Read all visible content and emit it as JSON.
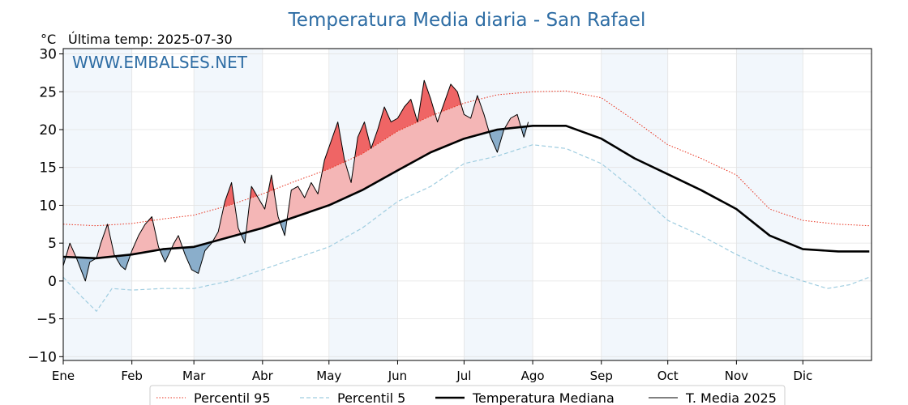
{
  "chart_data": {
    "type": "line",
    "title": "Temperatura Media diaria - San Rafael",
    "unit_label": "°C",
    "subtitle": "Última temp: 2025-07-30",
    "watermark": "WWW.EMBALSES.NET",
    "ylim": [
      -10.5,
      30.7
    ],
    "yticks": [
      -10,
      -5,
      0,
      5,
      10,
      15,
      20,
      25,
      30
    ],
    "ytick_labels": [
      "−10",
      "−5",
      "0",
      "5",
      "10",
      "15",
      "20",
      "25",
      "30"
    ],
    "x_domain_days": [
      0,
      365
    ],
    "months": [
      {
        "label": "Ene",
        "start_day": 0,
        "days": 31
      },
      {
        "label": "Feb",
        "start_day": 31,
        "days": 28
      },
      {
        "label": "Mar",
        "start_day": 59,
        "days": 31
      },
      {
        "label": "Abr",
        "start_day": 90,
        "days": 30
      },
      {
        "label": "May",
        "start_day": 120,
        "days": 31
      },
      {
        "label": "Jun",
        "start_day": 151,
        "days": 30
      },
      {
        "label": "Jul",
        "start_day": 181,
        "days": 31
      },
      {
        "label": "Ago",
        "start_day": 212,
        "days": 31
      },
      {
        "label": "Sep",
        "start_day": 243,
        "days": 30
      },
      {
        "label": "Oct",
        "start_day": 273,
        "days": 31
      },
      {
        "label": "Nov",
        "start_day": 304,
        "days": 30
      },
      {
        "label": "Dic",
        "start_day": 334,
        "days": 31
      }
    ],
    "grid": true,
    "legend_position": "bottom",
    "colors": {
      "title": "#2e6da4",
      "watermark": "#2e6da4",
      "p95": "#e8301c",
      "p5": "#9fcde0",
      "median": "#000000",
      "year": "#000000",
      "above": "#f4b6b6",
      "above_strong": "#ef6565",
      "below": "#8aaecb",
      "band": "#eaf2fa"
    },
    "series": [
      {
        "name": "Percentil 95",
        "style": "dotted",
        "x": [
          0,
          15,
          31,
          45,
          59,
          75,
          90,
          105,
          120,
          135,
          151,
          166,
          181,
          196,
          212,
          227,
          243,
          258,
          273,
          288,
          304,
          319,
          334,
          350,
          364
        ],
        "values": [
          7.5,
          7.3,
          7.6,
          8.2,
          8.7,
          10,
          11.5,
          13.2,
          14.8,
          16.8,
          19.8,
          21.8,
          23.5,
          24.6,
          25,
          25.1,
          24.2,
          21.2,
          18,
          16.2,
          14,
          9.5,
          8,
          7.5,
          7.3
        ]
      },
      {
        "name": "Percentil 5",
        "style": "dashed",
        "x": [
          0,
          8,
          15,
          22,
          31,
          45,
          59,
          75,
          90,
          105,
          120,
          135,
          151,
          166,
          181,
          196,
          212,
          227,
          243,
          258,
          273,
          288,
          304,
          319,
          334,
          345,
          355,
          364
        ],
        "values": [
          0.5,
          -2,
          -4,
          -1,
          -1.2,
          -1,
          -1,
          0,
          1.5,
          3,
          4.5,
          7,
          10.5,
          12.5,
          15.5,
          16.5,
          18,
          17.5,
          15.5,
          12,
          8,
          6,
          3.5,
          1.5,
          0,
          -1,
          -0.5,
          0.5
        ]
      },
      {
        "name": "Temperatura Mediana",
        "style": "solid-thick",
        "x": [
          0,
          15,
          31,
          45,
          59,
          75,
          90,
          105,
          120,
          135,
          151,
          166,
          181,
          196,
          212,
          227,
          243,
          258,
          273,
          288,
          304,
          319,
          334,
          350,
          364
        ],
        "values": [
          3.2,
          3,
          3.5,
          4.2,
          4.5,
          5.8,
          7,
          8.5,
          10,
          12,
          14.6,
          17,
          18.8,
          20,
          20.5,
          20.5,
          18.8,
          16.2,
          14.1,
          12,
          9.5,
          6,
          4.2,
          3.9,
          3.9
        ]
      },
      {
        "name": "T. Media 2025",
        "style": "solid-thin",
        "x": [
          0,
          3,
          6,
          10,
          12,
          15,
          17,
          20,
          23,
          26,
          28,
          31,
          34,
          37,
          40,
          43,
          46,
          50,
          52,
          55,
          58,
          61,
          64,
          67,
          70,
          73,
          76,
          79,
          82,
          85,
          88,
          91,
          94,
          97,
          100,
          103,
          106,
          109,
          112,
          115,
          118,
          121,
          124,
          127,
          130,
          133,
          136,
          139,
          142,
          145,
          148,
          151,
          154,
          157,
          160,
          163,
          166,
          169,
          172,
          175,
          178,
          181,
          184,
          187,
          190,
          193,
          196,
          199,
          202,
          205,
          208,
          210
        ],
        "values": [
          2,
          5,
          3,
          0,
          2.5,
          3,
          5,
          7.5,
          3.5,
          2,
          1.5,
          4,
          6,
          7.5,
          8.5,
          4.5,
          2.5,
          5,
          6,
          3.5,
          1.5,
          1,
          4,
          5,
          6.5,
          10.5,
          13,
          7,
          5,
          12.5,
          11,
          9.5,
          14,
          8.5,
          6,
          12,
          12.5,
          11,
          13,
          11.5,
          16,
          18.5,
          21,
          16,
          13,
          19,
          21,
          17.5,
          20,
          23,
          21,
          21.5,
          23,
          24,
          21,
          26.5,
          24,
          21,
          23.5,
          26,
          25,
          22,
          21.5,
          24.5,
          22,
          19,
          17,
          20,
          21.5,
          22,
          19,
          21
        ]
      }
    ],
    "legend": [
      {
        "label": "Percentil 95",
        "style": "dotted"
      },
      {
        "label": "Percentil 5",
        "style": "dashed"
      },
      {
        "label": "Temperatura Mediana",
        "style": "solid-thick"
      },
      {
        "label": "T. Media 2025",
        "style": "solid-thin"
      }
    ]
  }
}
